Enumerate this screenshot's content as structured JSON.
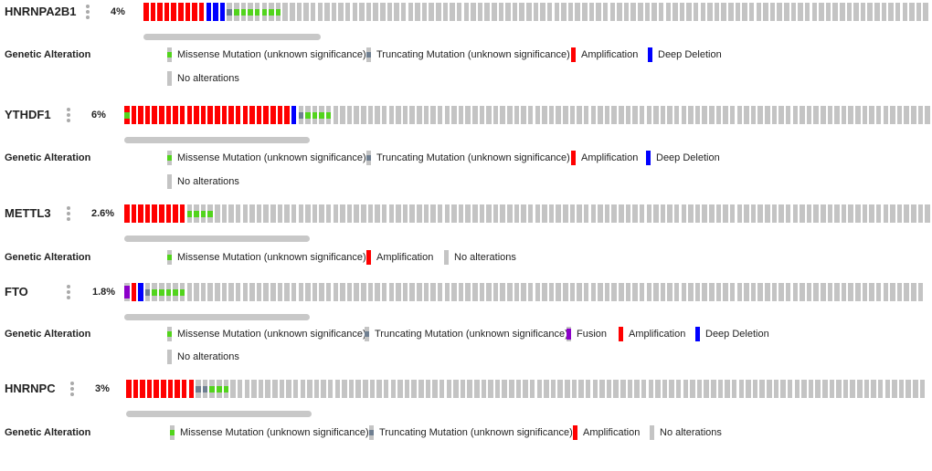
{
  "colors": {
    "amplification": "#ff0000",
    "deep_deletion": "#0000ff",
    "missense": "#52d41c",
    "truncating": "#6f7f91",
    "fusion": "#8b00c9",
    "none": "#c4c4c4"
  },
  "section_label": "Genetic Alteration",
  "tracks": [
    {
      "gene": "HNRNPA2B1",
      "percent": "4%",
      "samples": [
        {
          "type": "amplification",
          "count": 9
        },
        {
          "type": "deep_deletion",
          "count": 3
        },
        {
          "type": "truncating",
          "count": 1
        },
        {
          "type": "missense",
          "count": 7
        },
        {
          "type": "none",
          "count": 93
        }
      ],
      "legend": [
        [
          "missense",
          "Missense Mutation (unknown significance)"
        ],
        [
          "truncating",
          "Truncating Mutation (unknown significance)"
        ],
        [
          "amplification",
          "Amplification"
        ],
        [
          "deep_deletion",
          "Deep Deletion"
        ],
        [
          "none",
          "No alterations"
        ]
      ]
    },
    {
      "gene": "YTHDF1",
      "percent": "6%",
      "samples": [
        {
          "type": "amplification+missense",
          "count": 1
        },
        {
          "type": "amplification",
          "count": 23
        },
        {
          "type": "deep_deletion",
          "count": 1
        },
        {
          "type": "truncating",
          "count": 1
        },
        {
          "type": "missense",
          "count": 4
        },
        {
          "type": "none",
          "count": 86
        }
      ],
      "legend": [
        [
          "missense",
          "Missense Mutation (unknown significance)"
        ],
        [
          "truncating",
          "Truncating Mutation (unknown significance)"
        ],
        [
          "amplification",
          "Amplification"
        ],
        [
          "deep_deletion",
          "Deep Deletion"
        ],
        [
          "none",
          "No alterations"
        ]
      ]
    },
    {
      "gene": "METTL3",
      "percent": "2.6%",
      "samples": [
        {
          "type": "amplification",
          "count": 9
        },
        {
          "type": "missense",
          "count": 4
        },
        {
          "type": "none",
          "count": 103
        }
      ],
      "legend": [
        [
          "missense",
          "Missense Mutation (unknown significance)"
        ],
        [
          "amplification",
          "Amplification"
        ],
        [
          "none",
          "No alterations"
        ]
      ]
    },
    {
      "gene": "FTO",
      "percent": "1.8%",
      "samples": [
        {
          "type": "fusion",
          "count": 1
        },
        {
          "type": "amplification",
          "count": 1
        },
        {
          "type": "deep_deletion",
          "count": 1
        },
        {
          "type": "truncating",
          "count": 1
        },
        {
          "type": "missense",
          "count": 5
        },
        {
          "type": "none",
          "count": 106
        }
      ],
      "legend": [
        [
          "missense",
          "Missense Mutation (unknown significance)"
        ],
        [
          "truncating",
          "Truncating Mutation (unknown significance)"
        ],
        [
          "fusion",
          "Fusion"
        ],
        [
          "amplification",
          "Amplification"
        ],
        [
          "deep_deletion",
          "Deep Deletion"
        ],
        [
          "none",
          "No alterations"
        ]
      ]
    },
    {
      "gene": "HNRNPC",
      "percent": "3%",
      "samples": [
        {
          "type": "amplification",
          "count": 10
        },
        {
          "type": "truncating",
          "count": 2
        },
        {
          "type": "missense",
          "count": 3
        },
        {
          "type": "none",
          "count": 100
        }
      ],
      "legend": [
        [
          "missense",
          "Missense Mutation (unknown significance)"
        ],
        [
          "truncating",
          "Truncating Mutation (unknown significance)"
        ],
        [
          "amplification",
          "Amplification"
        ],
        [
          "none",
          "No alterations"
        ]
      ]
    }
  ]
}
